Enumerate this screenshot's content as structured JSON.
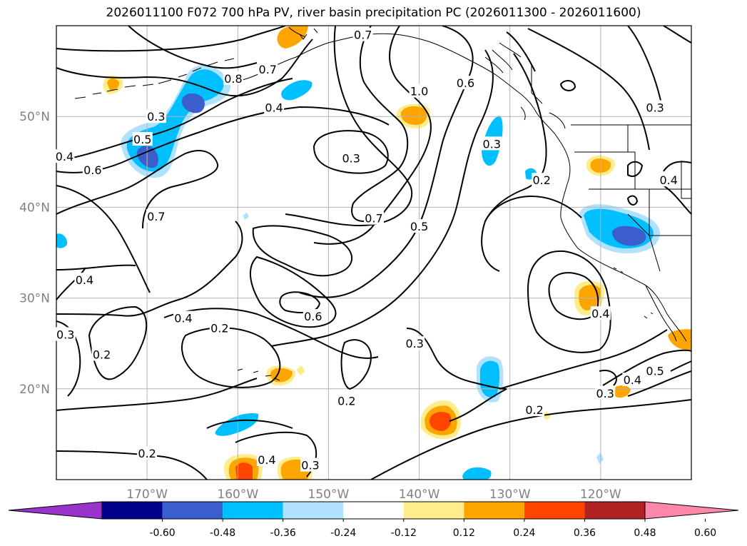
{
  "title": "2026011100 F072 700 hPa PV, river basin precipitation PC (2026011300 - 2026011600)",
  "colors": {
    "axis_label": "#808080",
    "grid": "#b4b4b4",
    "contour": "#000000",
    "coast": "#000000"
  },
  "map": {
    "lon_range": [
      -180,
      -110
    ],
    "lat_range": [
      10,
      60
    ],
    "lon_ticks": [
      {
        "value": -170,
        "label": "170°W"
      },
      {
        "value": -160,
        "label": "160°W"
      },
      {
        "value": -150,
        "label": "150°W"
      },
      {
        "value": -140,
        "label": "140°W"
      },
      {
        "value": -130,
        "label": "130°W"
      },
      {
        "value": -120,
        "label": "120°W"
      }
    ],
    "lat_ticks": [
      {
        "value": 50,
        "label": "50°N"
      },
      {
        "value": 40,
        "label": "40°N"
      },
      {
        "value": 30,
        "label": "30°N"
      },
      {
        "value": 20,
        "label": "20°N"
      }
    ]
  },
  "contour_labels": [
    {
      "text": "0.8",
      "lon": -160.5,
      "lat": 54.2
    },
    {
      "text": "0.7",
      "lon": -156.7,
      "lat": 55.2
    },
    {
      "text": "0.7",
      "lon": -146.2,
      "lat": 59.0
    },
    {
      "text": "0.4",
      "lon": -156.0,
      "lat": 51.0
    },
    {
      "text": "1.0",
      "lon": -140.0,
      "lat": 52.8
    },
    {
      "text": "0.6",
      "lon": -134.9,
      "lat": 53.7
    },
    {
      "text": "0.3",
      "lon": -169.0,
      "lat": 50.0
    },
    {
      "text": "0.5",
      "lon": -170.5,
      "lat": 47.5
    },
    {
      "text": "0.4",
      "lon": -179.1,
      "lat": 45.6
    },
    {
      "text": "0.6",
      "lon": -176.0,
      "lat": 44.1
    },
    {
      "text": "0.3",
      "lon": -147.5,
      "lat": 45.4
    },
    {
      "text": "0.3",
      "lon": -132.0,
      "lat": 47.0
    },
    {
      "text": "0.2",
      "lon": -126.5,
      "lat": 43.0
    },
    {
      "text": "0.3",
      "lon": -114.0,
      "lat": 51.0
    },
    {
      "text": "0.4",
      "lon": -112.5,
      "lat": 43.0
    },
    {
      "text": "0.7",
      "lon": -169.0,
      "lat": 39.0
    },
    {
      "text": "0.7",
      "lon": -145.0,
      "lat": 38.8
    },
    {
      "text": "0.5",
      "lon": -140.0,
      "lat": 37.9
    },
    {
      "text": "0.4",
      "lon": -176.9,
      "lat": 32.0
    },
    {
      "text": "0.4",
      "lon": -166.0,
      "lat": 27.8
    },
    {
      "text": "0.2",
      "lon": -162.0,
      "lat": 26.7
    },
    {
      "text": "0.6",
      "lon": -151.7,
      "lat": 28.0
    },
    {
      "text": "0.3",
      "lon": -179.0,
      "lat": 26.0
    },
    {
      "text": "0.2",
      "lon": -175.0,
      "lat": 23.8
    },
    {
      "text": "0.3",
      "lon": -140.5,
      "lat": 25.0
    },
    {
      "text": "0.2",
      "lon": -148.0,
      "lat": 18.7
    },
    {
      "text": "0.4",
      "lon": -120.0,
      "lat": 28.3
    },
    {
      "text": "0.4",
      "lon": -116.5,
      "lat": 21.0
    },
    {
      "text": "0.5",
      "lon": -114.0,
      "lat": 22.0
    },
    {
      "text": "0.3",
      "lon": -119.5,
      "lat": 19.5
    },
    {
      "text": "0.2",
      "lon": -127.3,
      "lat": 17.7
    },
    {
      "text": "0.2",
      "lon": -170.0,
      "lat": 12.9
    },
    {
      "text": "0.4",
      "lon": -156.8,
      "lat": 12.2
    },
    {
      "text": "0.3",
      "lon": -152.0,
      "lat": 11.6
    }
  ],
  "colorbar": {
    "colors": [
      "#9933cc",
      "#00008b",
      "#3a5fcd",
      "#00bfff",
      "#b0e2ff",
      "#ffffff",
      "#ffec8b",
      "#ffa500",
      "#ff4500",
      "#b22222",
      "#ff88aa"
    ],
    "ticks": [
      "-0.60",
      "-0.48",
      "-0.36",
      "-0.24",
      "-0.12",
      "0.12",
      "0.24",
      "0.36",
      "0.48",
      "0.60"
    ]
  }
}
